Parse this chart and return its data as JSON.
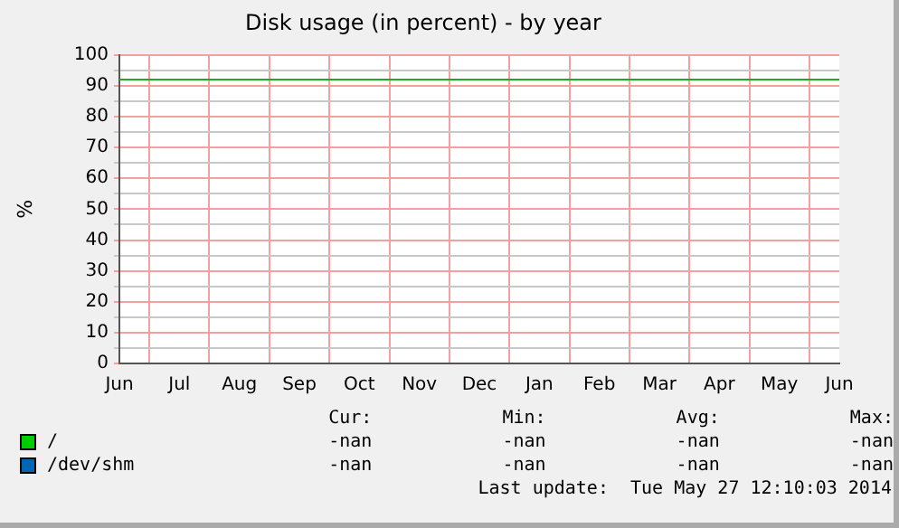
{
  "chart_data": {
    "type": "line",
    "title": "Disk usage (in percent) - by year",
    "ylabel": "%",
    "categories": [
      "Jun",
      "Jul",
      "Aug",
      "Sep",
      "Oct",
      "Nov",
      "Dec",
      "Jan",
      "Feb",
      "Mar",
      "Apr",
      "May",
      "Jun"
    ],
    "series": [
      {
        "name": "/",
        "color": "#00cc00",
        "values": [
          null,
          null,
          null,
          null,
          null,
          null,
          null,
          null,
          null,
          null,
          null,
          null,
          null
        ]
      },
      {
        "name": "/dev/shm",
        "color": "#0066b3",
        "values": [
          null,
          null,
          null,
          null,
          null,
          null,
          null,
          null,
          null,
          null,
          null,
          null,
          null
        ]
      }
    ],
    "ylim": [
      0,
      100
    ],
    "yticks": [
      0,
      {
        "value": 5,
        "label": null
      },
      10,
      {
        "value": 15,
        "label": null
      },
      20,
      {
        "value": 25,
        "label": null
      },
      30,
      {
        "value": 35,
        "label": null
      },
      40,
      {
        "value": 45,
        "label": null
      },
      50,
      {
        "value": 55,
        "label": null
      },
      60,
      {
        "value": 65,
        "label": null
      },
      70,
      {
        "value": 75,
        "label": null
      },
      80,
      {
        "value": 85,
        "label": null
      },
      90,
      {
        "value": 95,
        "label": null
      },
      100
    ],
    "ref_lines": [
      {
        "axis": "y",
        "value": 92,
        "color": "#22aa22"
      }
    ],
    "grid": true,
    "legend": "bottom",
    "annotations": [
      "Cur:",
      "Min:",
      "Avg:",
      "Max:",
      "-nan",
      "-nan",
      "-nan",
      "-nan",
      "-nan",
      "-nan",
      "-nan",
      "-nan",
      "Last update:  Tue May 27 12:10:03 2014"
    ]
  }
}
